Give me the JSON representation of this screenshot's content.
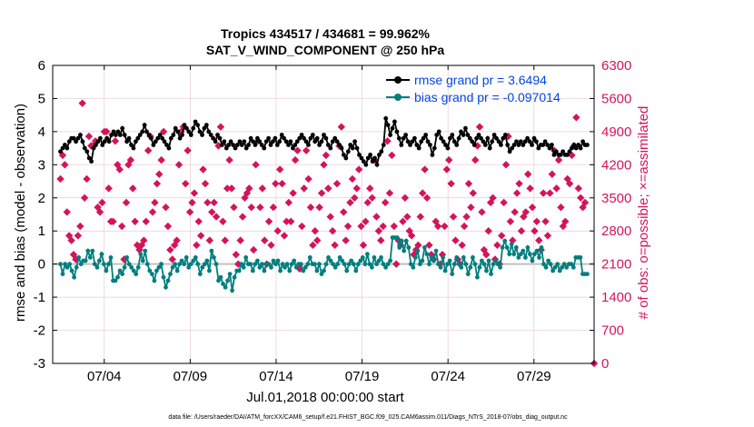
{
  "chart_data": {
    "type": "line",
    "title_line1": "Tropics 434517 / 434681 = 99.962%",
    "title_line2": "SAT_V_WIND_COMPONENT @ 250 hPa",
    "xlabel": "Jul.01,2018 00:00:00 start",
    "ylabel_left": "rmse and bias (model - observation)",
    "ylabel_right": "# of obs: o=possible; ×=assimilated",
    "xlim": [
      0.5,
      32
    ],
    "ylim_left": [
      -3,
      6
    ],
    "ylim_right": [
      0,
      6300
    ],
    "x_ticks": [
      3.5,
      8.5,
      13.5,
      18.5,
      23.5,
      28.5
    ],
    "x_tick_labels": [
      "07/04",
      "07/09",
      "07/14",
      "07/19",
      "07/24",
      "07/29"
    ],
    "y_ticks_left": [
      -3,
      -2,
      -1,
      0,
      1,
      2,
      3,
      4,
      5,
      6
    ],
    "y_ticks_right": [
      0,
      700,
      1400,
      2100,
      2800,
      3500,
      4200,
      4900,
      5600,
      6300
    ],
    "grid": true,
    "legend_position": "top-right",
    "colors": {
      "rmse": "#000000",
      "bias": "#007e7e",
      "obs": "#d4145a",
      "zero_line": "#c0c0c0",
      "grid": "#e8cbd3",
      "legend_text": "#0047e0"
    },
    "series": [
      {
        "name": "rmse grand pr = 3.6494",
        "axis": "left",
        "values": [
          3.4,
          3.5,
          3.6,
          3.5,
          3.7,
          3.8,
          3.8,
          3.7,
          3.8,
          3.9,
          3.7,
          3.5,
          3.4,
          3.2,
          3.1,
          3.5,
          3.6,
          3.7,
          3.8,
          3.6,
          3.7,
          3.8,
          3.7,
          3.9,
          4.0,
          3.9,
          4.0,
          3.9,
          4.1,
          3.9,
          3.7,
          3.8,
          3.6,
          3.5,
          3.7,
          3.8,
          3.9,
          4.0,
          4.2,
          4.0,
          3.9,
          3.8,
          3.6,
          3.7,
          3.8,
          3.9,
          3.8,
          3.7,
          3.6,
          3.5,
          3.8,
          3.9,
          4.1,
          4.0,
          3.8,
          3.9,
          4.2,
          4.1,
          4.0,
          3.9,
          4.1,
          4.3,
          4.2,
          4.0,
          3.9,
          4.1,
          4.2,
          4.0,
          3.9,
          3.8,
          3.7,
          3.9,
          3.8,
          3.6,
          3.7,
          3.5,
          3.6,
          3.7,
          3.6,
          3.5,
          3.6,
          3.7,
          3.6,
          3.7,
          3.5,
          3.6,
          3.8,
          3.7,
          3.6,
          3.8,
          3.7,
          3.6,
          3.5,
          3.7,
          3.8,
          3.6,
          3.7,
          3.8,
          3.6,
          3.7,
          3.9,
          3.8,
          3.7,
          3.6,
          3.7,
          3.5,
          3.6,
          3.7,
          3.8,
          3.9,
          3.8,
          3.7,
          3.6,
          3.8,
          3.9,
          3.7,
          3.8,
          3.6,
          3.7,
          3.9,
          3.8,
          3.6,
          3.5,
          3.7,
          3.8,
          3.7,
          3.6,
          3.5,
          3.3,
          3.2,
          3.4,
          3.6,
          3.5,
          3.7,
          3.5,
          3.3,
          3.2,
          3.1,
          3.0,
          3.2,
          3.3,
          3.1,
          3.2,
          3.0,
          3.3,
          3.4,
          3.6,
          4.4,
          4.2,
          3.9,
          4.1,
          4.3,
          4.0,
          3.8,
          3.6,
          3.8,
          3.9,
          3.7,
          3.6,
          3.7,
          3.8,
          3.6,
          3.5,
          3.7,
          3.8,
          3.9,
          3.7,
          3.6,
          3.3,
          3.5,
          3.9,
          4.0,
          3.8,
          3.7,
          3.6,
          3.5,
          3.8,
          3.9,
          3.7,
          3.6,
          3.8,
          4.0,
          3.9,
          4.1,
          3.9,
          3.8,
          3.7,
          3.6,
          3.8,
          3.9,
          3.8,
          3.7,
          3.6,
          3.8,
          3.5,
          3.7,
          3.9,
          3.8,
          3.7,
          3.6,
          3.8,
          3.9,
          3.6,
          3.4,
          3.5,
          3.6,
          3.7,
          3.6,
          3.7,
          3.6,
          3.7,
          3.8,
          3.7,
          3.6,
          3.8,
          3.7,
          3.5,
          3.6,
          3.6,
          3.7,
          3.6,
          3.5,
          3.6,
          3.3,
          3.4,
          3.3,
          3.3,
          3.4,
          3.3,
          3.3,
          3.4,
          3.5,
          3.6,
          3.5,
          3.6,
          3.5,
          3.7,
          3.6,
          3.6
        ],
        "marker": "circle-filled"
      },
      {
        "name": "bias grand pr = -0.097014",
        "axis": "left",
        "values": [
          0.0,
          -0.3,
          0.0,
          -0.1,
          0.0,
          -0.2,
          -0.4,
          -0.1,
          0.2,
          0.0,
          0.1,
          0.1,
          0.4,
          0.2,
          0.4,
          0.0,
          -0.1,
          0.1,
          0.3,
          0.0,
          -0.2,
          0.0,
          0.2,
          -0.5,
          -0.5,
          -0.4,
          -0.2,
          -0.3,
          -0.1,
          0.2,
          0.0,
          -0.1,
          -0.2,
          -0.3,
          -0.1,
          0.3,
          0.1,
          0.4,
          0.0,
          -0.2,
          -0.3,
          -0.5,
          -0.2,
          -0.1,
          0.0,
          -0.4,
          -0.7,
          -0.5,
          -0.3,
          -0.1,
          0.0,
          -0.2,
          0.0,
          0.1,
          0.0,
          0.2,
          -0.1,
          0.0,
          0.1,
          0.2,
          0.0,
          -0.3,
          -0.1,
          0.0,
          0.1,
          -0.2,
          0.4,
          0.2,
          0.0,
          -0.5,
          -0.4,
          -0.6,
          -0.7,
          -0.5,
          -0.3,
          -0.8,
          -0.4,
          -0.2,
          -0.2,
          0.0,
          -0.1,
          0.2,
          0.0,
          0.0,
          -0.2,
          0.0,
          0.1,
          -0.1,
          0.0,
          -0.2,
          0.0,
          0.0,
          -0.1,
          0.1,
          0.0,
          0.1,
          -0.2,
          0.0,
          -0.1,
          0.0,
          -0.2,
          0.0,
          0.1,
          -0.1,
          0.0,
          0.0,
          -0.2,
          -0.1,
          0.0,
          0.2,
          0.0,
          0.0,
          -0.2,
          0.0,
          -0.3,
          -0.2,
          0.0,
          0.2,
          0.1,
          0.0,
          -0.1,
          0.0,
          0.2,
          0.1,
          0.0,
          -0.2,
          0.0,
          0.1,
          0.0,
          -0.2,
          0.0,
          0.1,
          0.2,
          0.0,
          0.3,
          0.0,
          -0.1,
          0.2,
          0.0,
          0.1,
          0.2,
          0.0,
          -0.1,
          0.0,
          0.1,
          0.8,
          0.8,
          0.8,
          0.5,
          0.7,
          0.4,
          0.7,
          0.5,
          0.0,
          -0.1,
          0.2,
          0.4,
          0.0,
          0.1,
          0.5,
          0.3,
          0.0,
          0.2,
          0.1,
          0.4,
          0.0,
          -0.1,
          0.2,
          -0.2,
          0.0,
          0.1,
          -0.3,
          0.0,
          0.2,
          0.0,
          -0.1,
          0.2,
          0.0,
          -0.3,
          -0.1,
          0.2,
          0.0,
          -0.4,
          -0.1,
          0.1,
          0.0,
          -0.2,
          0.1,
          -0.3,
          0.0,
          0.1,
          0.0,
          -0.1,
          0.5,
          0.7,
          0.5,
          0.3,
          0.6,
          0.3,
          0.5,
          0.2,
          0.3,
          0.4,
          0.2,
          0.5,
          0.3,
          0.1,
          0.3,
          0.4,
          0.2,
          0.5,
          0.0,
          -0.1,
          0.1,
          0.0,
          -0.2,
          -0.1,
          0.0,
          -0.2,
          -0.1,
          0.0,
          -0.1,
          0.0,
          0.0,
          -0.1,
          0.2,
          0.2,
          0.2,
          -0.3,
          -0.3,
          -0.3
        ],
        "marker": "circle-filled"
      },
      {
        "name": "# of obs possible / assimilated",
        "axis": "right",
        "values": [
          3900,
          4400,
          4200,
          3200,
          2700,
          2600,
          2300,
          2200,
          2700,
          2900,
          5500,
          3500,
          3900,
          4800,
          4600,
          4600,
          4700,
          3300,
          3200,
          3400,
          4900,
          4900,
          3700,
          3000,
          3000,
          4700,
          4200,
          4100,
          2900,
          2200,
          3400,
          4200,
          4300,
          3700,
          3000,
          2500,
          2400,
          2500,
          2600,
          3000,
          4500,
          4800,
          3200,
          3400,
          3800,
          4000,
          4300,
          4900,
          3300,
          2900,
          2400,
          2200,
          2500,
          2600,
          4200,
          4900,
          5000,
          3800,
          4500,
          3200,
          3400,
          3600,
          2500,
          3000,
          2700,
          4100,
          3800,
          3400,
          2600,
          3200,
          3400,
          3100,
          4600,
          5000,
          3000,
          2600,
          3700,
          4300,
          3700,
          3300,
          2300,
          2100,
          2600,
          3100,
          3500,
          3600,
          3700,
          3300,
          2400,
          4200,
          4700,
          3300,
          3700,
          2600,
          2100,
          3000,
          2500,
          3300,
          3800,
          2800,
          4100,
          3800,
          2700,
          3000,
          3400,
          3000,
          3600,
          4300,
          4500,
          2000,
          2900,
          3700,
          4500,
          3900,
          3300,
          2500,
          2800,
          2600,
          3300,
          3600,
          4200,
          4400,
          3700,
          3100,
          2800,
          2500,
          3800,
          4600,
          5000,
          3200,
          2600,
          2900,
          3400,
          3900,
          3500,
          3700,
          4100,
          2900,
          2500,
          3000,
          3400,
          3700,
          3500,
          4300,
          3100,
          2800,
          2600,
          2900,
          3400,
          4700,
          3600,
          4400,
          2900,
          2100,
          2600,
          2500,
          3000,
          3500,
          3100,
          2800,
          2700,
          2300,
          2400,
          2500,
          3100,
          3600,
          4100,
          3500,
          2500,
          2300,
          2200,
          3000,
          2900,
          2100,
          2300,
          2900,
          4100,
          4300,
          3800,
          3100,
          2600,
          2200,
          2100,
          2500,
          2900,
          3100,
          3800,
          3300,
          3600,
          4300,
          4600,
          5000,
          3200,
          2400,
          2300,
          2800,
          3400,
          3500,
          2200,
          2500,
          2100,
          2700,
          3400,
          4200,
          4800,
          3000,
          2600,
          3200,
          3600,
          3800,
          2800,
          3100,
          3200,
          4000,
          3700,
          3300,
          2800,
          3000,
          2600,
          2400,
          3600,
          3000,
          2700,
          3600,
          4000,
          4500,
          3700,
          4300,
          3300,
          2900,
          3000,
          3900,
          3800,
          4400,
          4600,
          5200,
          3700,
          3500,
          3300,
          3400,
          0
        ],
        "marker": "diamond"
      }
    ],
    "footer": "data file: /Users/raeder/DAI/ATM_forcXX/CAM6_setup/f.e21.FHIST_BGC.f09_025.CAM6assim.011/Diags_NTrS_2018-07/obs_diag_output.nc"
  }
}
